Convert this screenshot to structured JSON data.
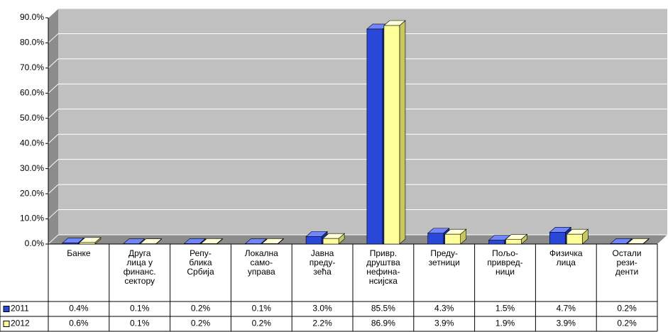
{
  "chart_data": {
    "type": "bar",
    "categories": [
      "Банке",
      "Друга\nлица у\nфинанс.\nсектору",
      "Репу-\nблика\nСрбија",
      "Локална\nсамо-\nуправа",
      "Јавна\nпреду-\nзећа",
      "Привр.\nдруштва\nнефина-\nнсијска",
      "Преду-\nзетници",
      "Пољо-\nпривред-\nници",
      "Физичка\nлица",
      "Остали\nрези-\nденти"
    ],
    "series": [
      {
        "name": "2011",
        "color": "#2a48d8",
        "values": [
          0.4,
          0.1,
          0.2,
          0.1,
          3.0,
          85.5,
          4.3,
          1.5,
          4.7,
          0.2
        ],
        "value_labels": [
          "0.4%",
          "0.1%",
          "0.2%",
          "0.1%",
          "3.0%",
          "85.5%",
          "4.3%",
          "1.5%",
          "4.7%",
          "0.2%"
        ]
      },
      {
        "name": "2012",
        "color": "#ffff99",
        "values": [
          0.6,
          0.1,
          0.2,
          0.2,
          2.2,
          86.9,
          3.9,
          1.9,
          3.9,
          0.2
        ],
        "value_labels": [
          "0.6%",
          "0.1%",
          "0.2%",
          "0.2%",
          "2.2%",
          "86.9%",
          "3.9%",
          "1.9%",
          "3.9%",
          "0.2%"
        ]
      }
    ],
    "ylim": [
      0,
      90
    ],
    "yticks": [
      {
        "value": 0,
        "label": "0.0%"
      },
      {
        "value": 10,
        "label": "10.0%"
      },
      {
        "value": 20,
        "label": "20.0%"
      },
      {
        "value": 30,
        "label": "30.0%"
      },
      {
        "value": 40,
        "label": "40.0%"
      },
      {
        "value": 50,
        "label": "50.0%"
      },
      {
        "value": 60,
        "label": "60.0%"
      },
      {
        "value": 70,
        "label": "70.0%"
      },
      {
        "value": 80,
        "label": "80.0%"
      },
      {
        "value": 90,
        "label": "90.0%"
      }
    ],
    "grid": true
  }
}
